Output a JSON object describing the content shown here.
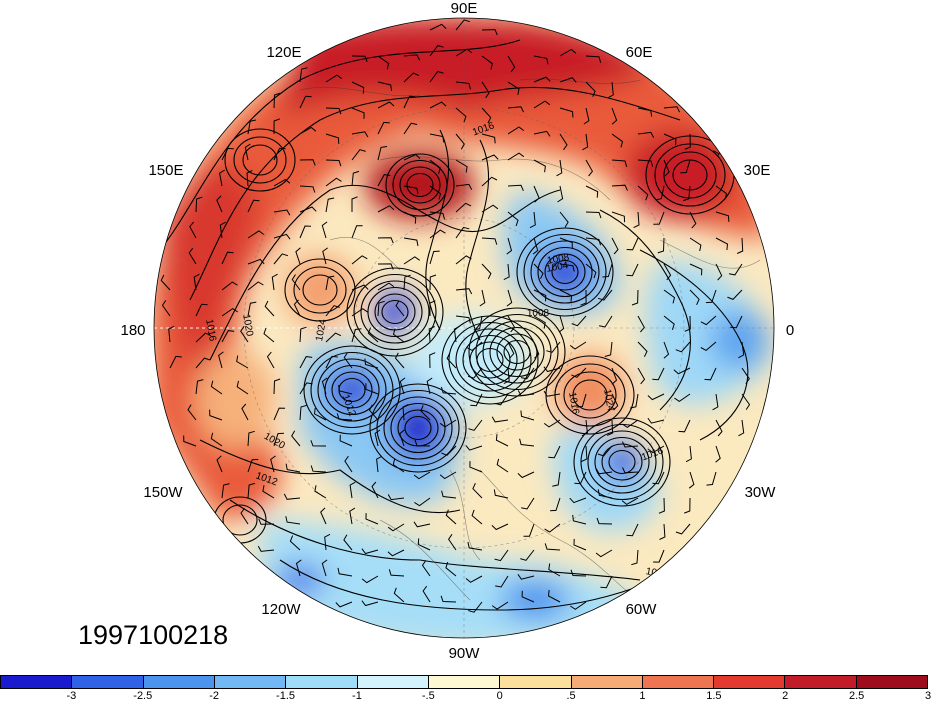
{
  "map": {
    "projection": "north-polar-stereographic",
    "longitude_labels": [
      "90E",
      "60E",
      "30E",
      "0",
      "30W",
      "60W",
      "90W",
      "120W",
      "150W",
      "180",
      "150E",
      "120E"
    ],
    "contour_labels": [
      "1016",
      "1012",
      "1020",
      "1024",
      "1008",
      "1016",
      "1024",
      "1020",
      "1012",
      "1016",
      "1012",
      "1004",
      "1008",
      "1016",
      "1012"
    ]
  },
  "timestamp": "1997100218",
  "colorbar": {
    "colors": [
      "#1a1acf",
      "#2f62e6",
      "#4c93ee",
      "#72b8f4",
      "#9fdcf8",
      "#d2f3fb",
      "#fdf7d2",
      "#fbdf9d",
      "#f6aa75",
      "#ef7451",
      "#e3392f",
      "#c11c27",
      "#9e0d1c"
    ],
    "labels": [
      "-3",
      "-2.5",
      "-2",
      "-1.5",
      "-1",
      "-.5",
      "0",
      ".5",
      "1",
      "1.5",
      "2",
      "2.5",
      "3"
    ]
  }
}
